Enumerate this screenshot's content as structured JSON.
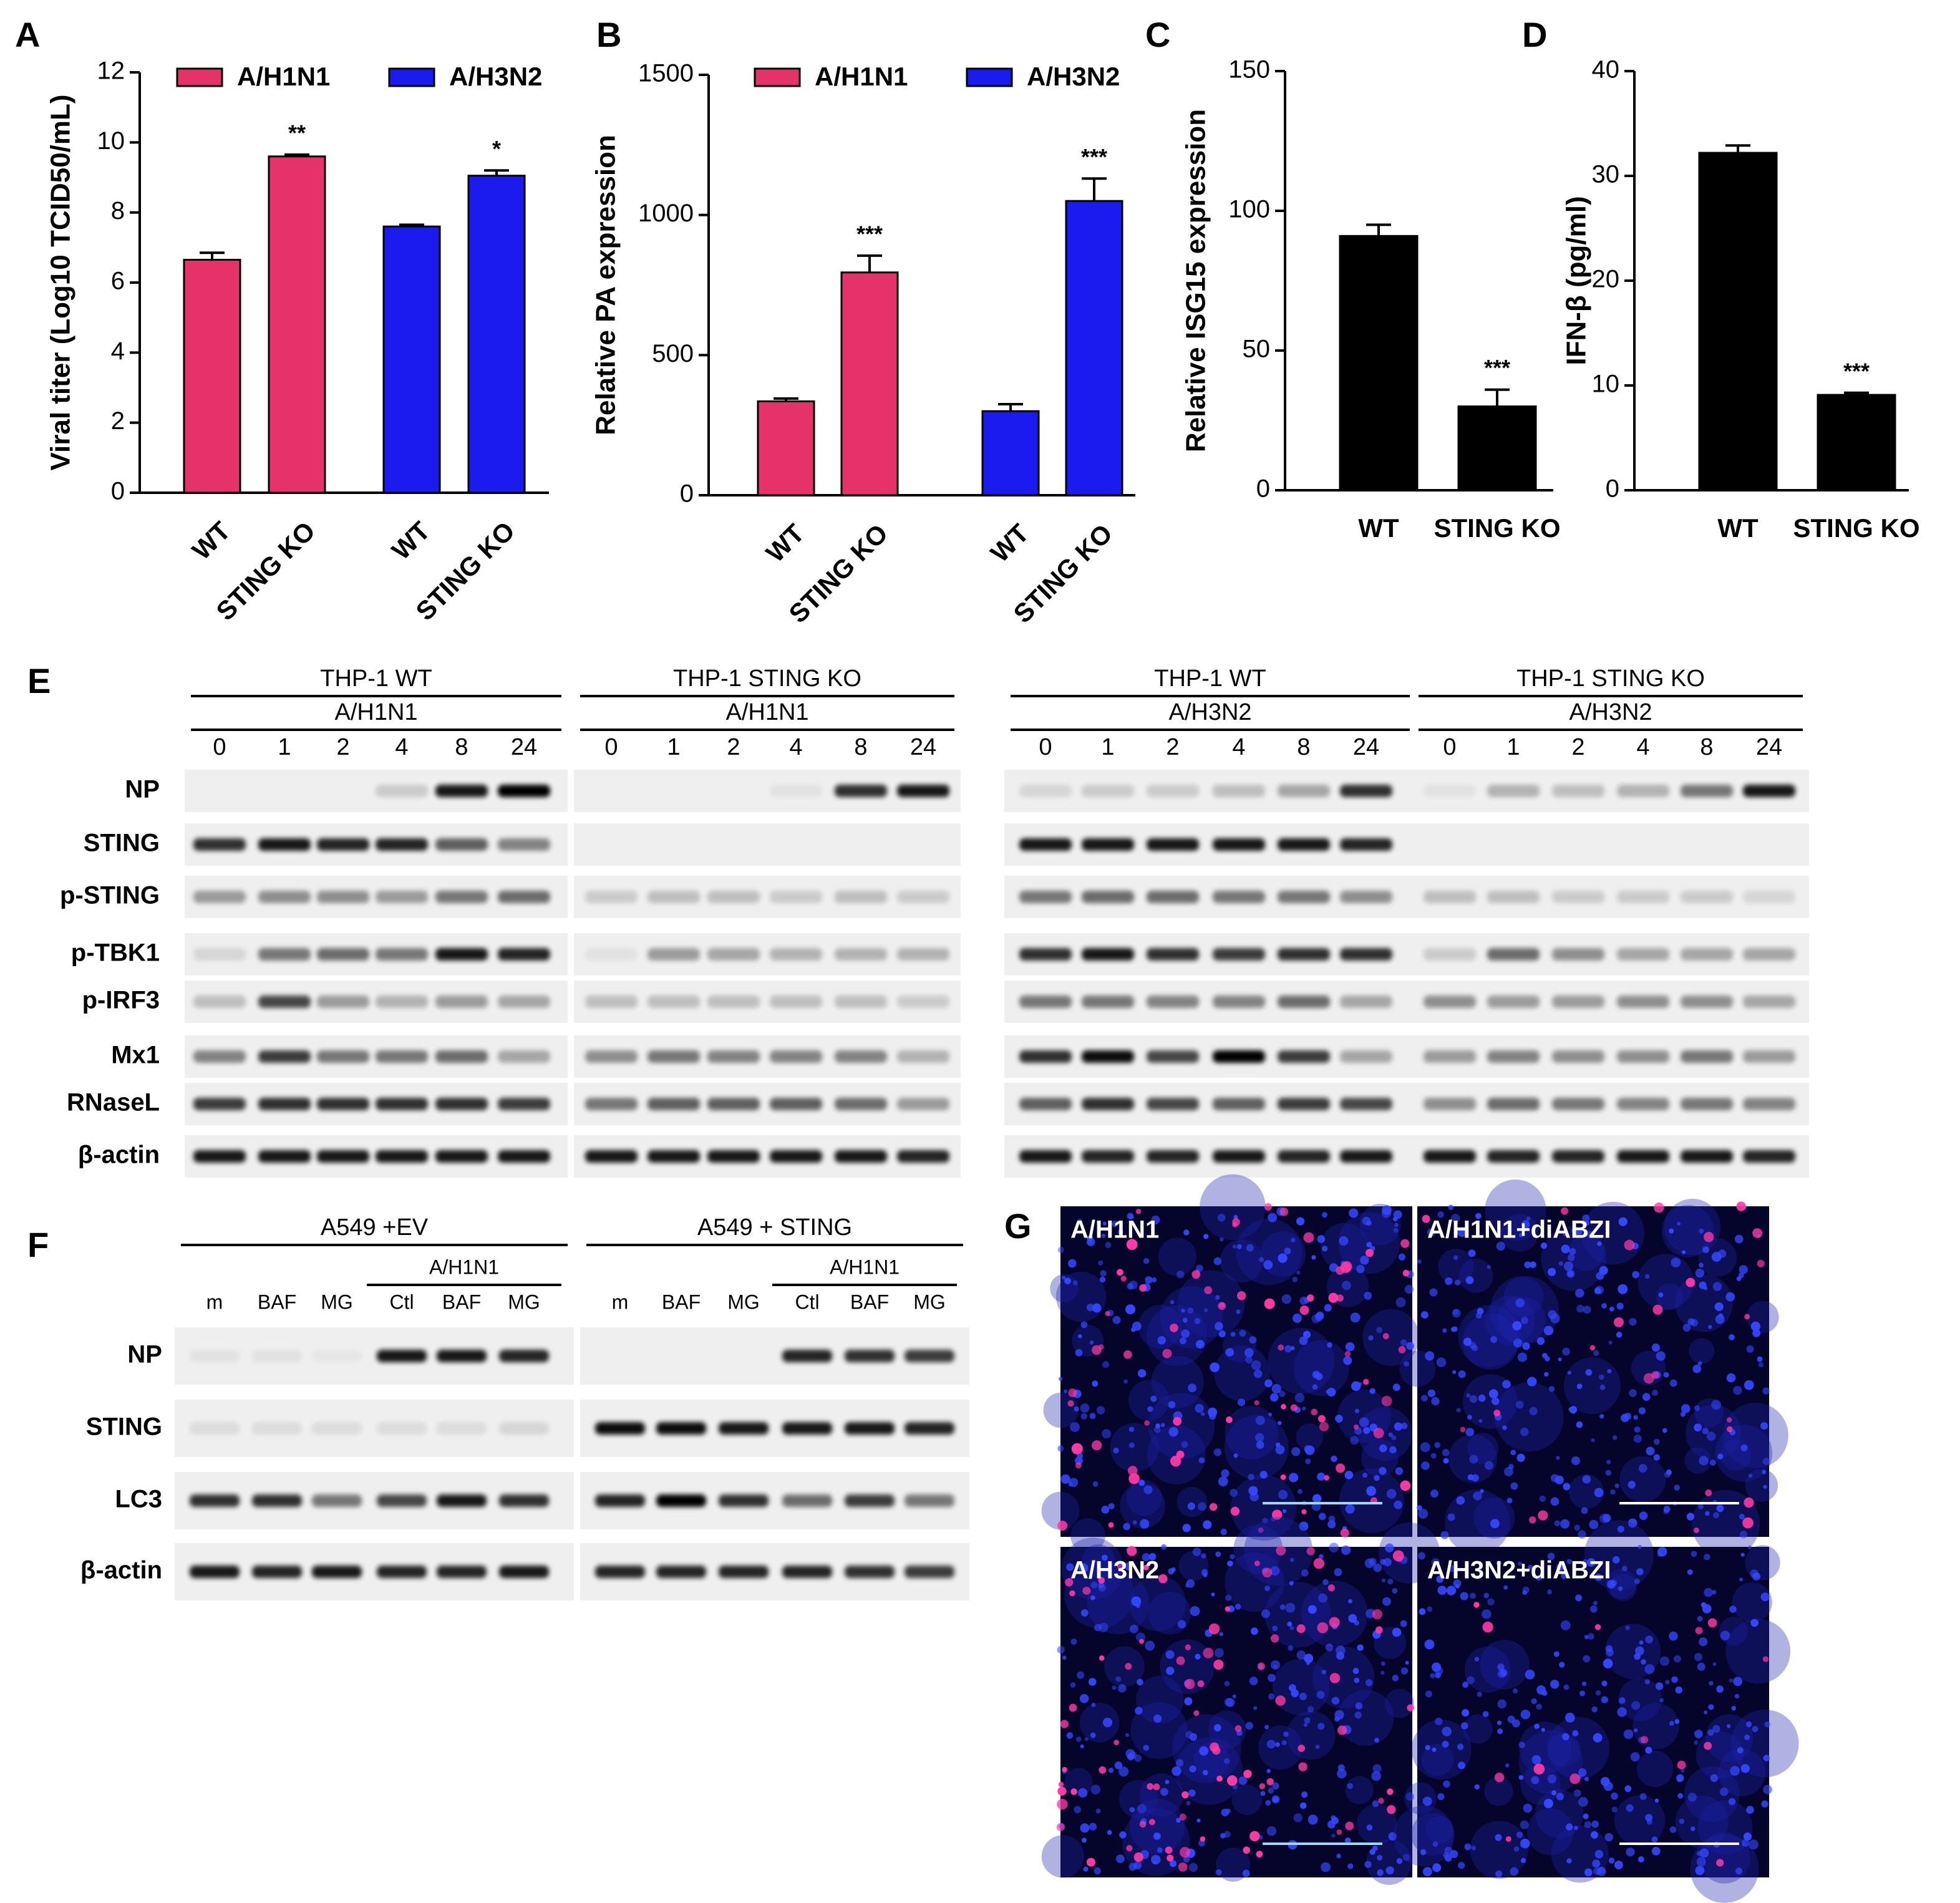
{
  "chart_data": [
    {
      "type": "bar",
      "panel": "A",
      "ylabel": "Viral titer (Log10 TCID50/mL)",
      "categories": [
        "WT",
        "STING KO",
        "WT",
        "STING KO"
      ],
      "series": [
        {
          "name": "A/H1N1",
          "color": "#e5326b",
          "values": [
            6.65,
            9.6,
            null,
            null
          ],
          "errors": [
            0.2,
            0.05,
            null,
            null
          ]
        },
        {
          "name": "A/H3N2",
          "color": "#1b1bf0",
          "values": [
            null,
            null,
            7.6,
            9.05
          ],
          "errors": [
            null,
            null,
            0.05,
            0.15
          ]
        }
      ],
      "annotations": [
        null,
        "**",
        null,
        "*"
      ],
      "ylim": [
        0,
        12
      ],
      "yticks": [
        0,
        2,
        4,
        6,
        8,
        10,
        12
      ]
    },
    {
      "type": "bar",
      "panel": "B",
      "ylabel": "Relative PA expression",
      "categories": [
        "WT",
        "STING KO",
        "WT",
        "STING KO"
      ],
      "series": [
        {
          "name": "A/H1N1",
          "color": "#e5326b",
          "values": [
            335,
            795,
            null,
            null
          ],
          "errors": [
            10,
            60,
            null,
            null
          ]
        },
        {
          "name": "A/H3N2",
          "color": "#1b1bf0",
          "values": [
            null,
            null,
            300,
            1050
          ],
          "errors": [
            null,
            null,
            25,
            80
          ]
        }
      ],
      "annotations": [
        null,
        "***",
        null,
        "***"
      ],
      "ylim": [
        0,
        1500
      ],
      "yticks": [
        0,
        500,
        1000,
        1500
      ]
    },
    {
      "type": "bar",
      "panel": "C",
      "ylabel": "Relative ISG15 expression",
      "categories": [
        "WT",
        "STING KO"
      ],
      "values": [
        91,
        30
      ],
      "errors": [
        4,
        6
      ],
      "color": "#000000",
      "annotations": [
        null,
        "***"
      ],
      "ylim": [
        0,
        150
      ],
      "yticks": [
        0,
        50,
        100,
        150
      ]
    },
    {
      "type": "bar",
      "panel": "D",
      "ylabel": "IFN-β (pg/ml)",
      "categories": [
        "WT",
        "STING KO"
      ],
      "values": [
        32.2,
        9.1
      ],
      "errors": [
        0.7,
        0.2
      ],
      "color": "#000000",
      "annotations": [
        null,
        "***"
      ],
      "ylim": [
        0,
        40
      ],
      "yticks": [
        0,
        10,
        20,
        30,
        40
      ]
    }
  ],
  "blot_E": {
    "panel": "E",
    "rows": [
      "NP",
      "STING",
      "p-STING",
      "p-TBK1",
      "p-IRF3",
      "Mx1",
      "RNaseL",
      "β-actin"
    ],
    "groups": [
      {
        "cell": "THP-1 WT",
        "virus": "A/H1N1",
        "lanes": [
          "0",
          "1",
          "2",
          "4",
          "8",
          "24"
        ]
      },
      {
        "cell": "THP-1 STING KO",
        "virus": "A/H1N1",
        "lanes": [
          "0",
          "1",
          "2",
          "4",
          "8",
          "24"
        ]
      },
      {
        "cell": "THP-1 WT",
        "virus": "A/H3N2",
        "lanes": [
          "0",
          "1",
          "2",
          "4",
          "8",
          "24"
        ]
      },
      {
        "cell": "THP-1 STING KO",
        "virus": "A/H3N2",
        "lanes": [
          "0",
          "1",
          "2",
          "4",
          "8",
          "24"
        ]
      }
    ]
  },
  "blot_F": {
    "panel": "F",
    "rows": [
      "NP",
      "STING",
      "LC3",
      "β-actin"
    ],
    "groups": [
      {
        "cell": "A549 +EV",
        "virus": "A/H1N1",
        "lanes": [
          "m",
          "BAF",
          "MG",
          "Ctl",
          "BAF",
          "MG"
        ]
      },
      {
        "cell": "A549 + STING",
        "virus": "A/H1N1",
        "lanes": [
          "m",
          "BAF",
          "MG",
          "Ctl",
          "BAF",
          "MG"
        ]
      }
    ]
  },
  "images_G": {
    "panel": "G",
    "images": [
      "A/H1N1",
      "A/H1N1+diABZI",
      "A/H3N2",
      "A/H3N2+diABZI"
    ]
  }
}
